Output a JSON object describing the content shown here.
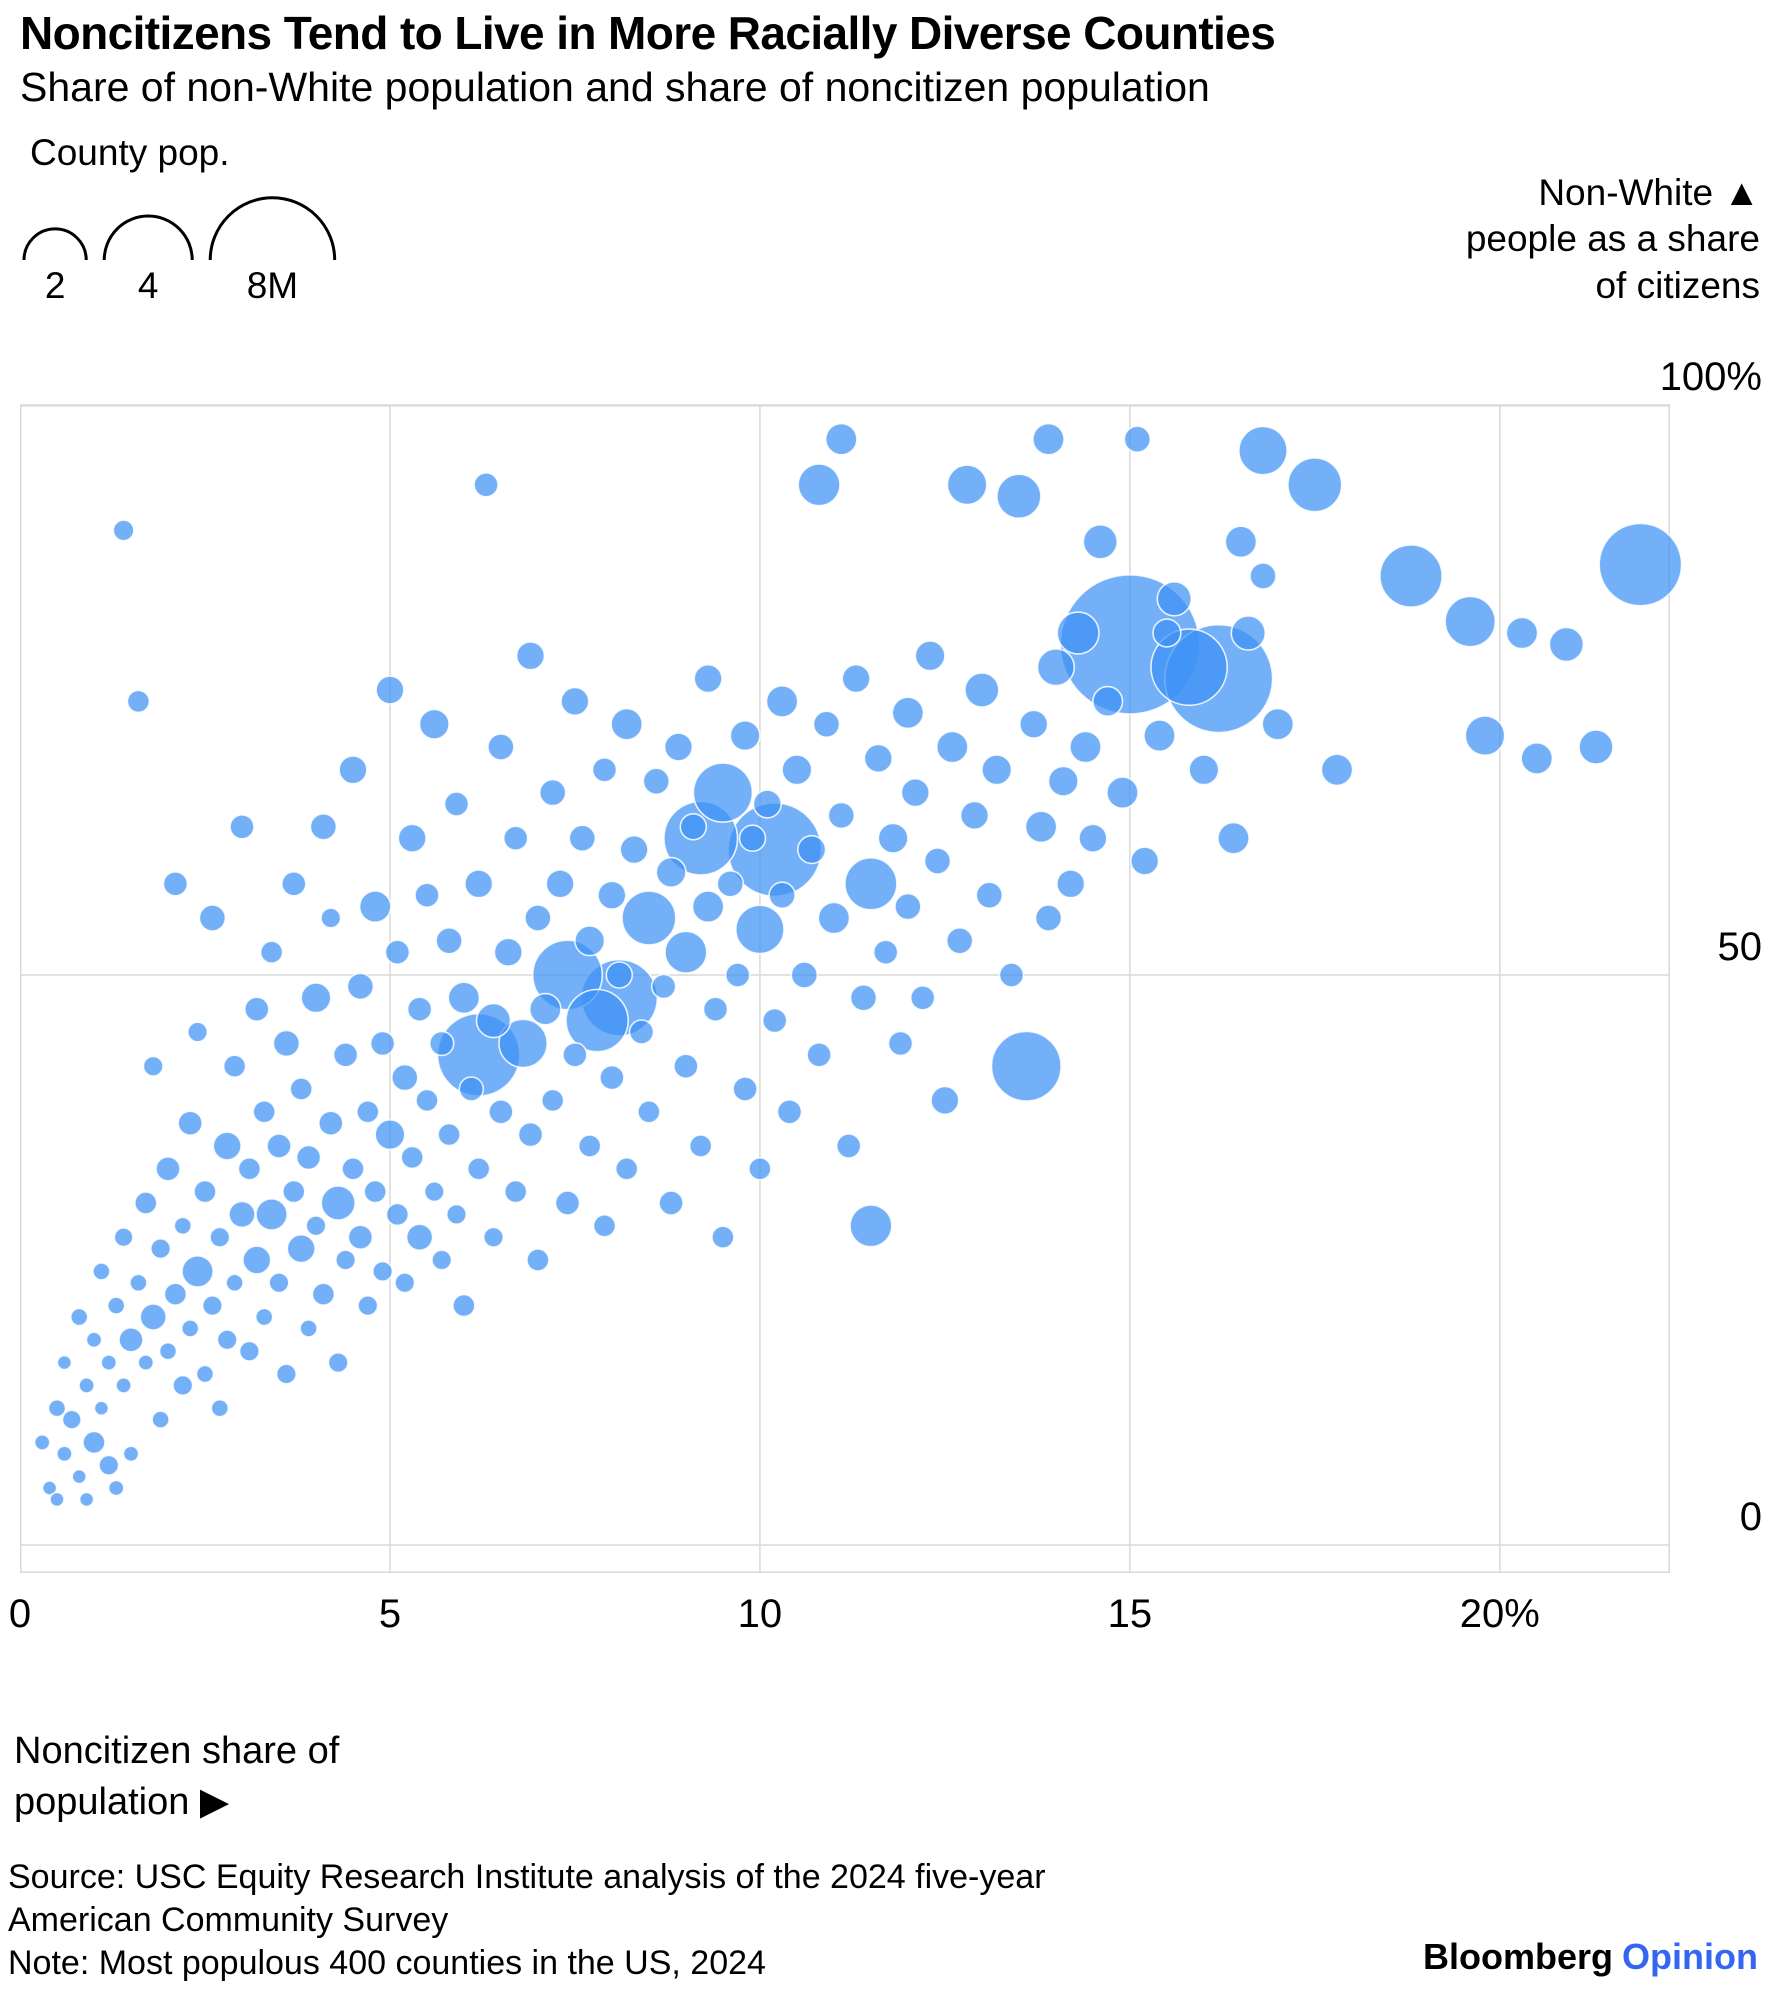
{
  "header": {
    "title": "Noncitizens Tend to Live in More Racially Diverse Counties",
    "subtitle": "Share of non-White population and share of noncitizen population"
  },
  "size_legend": {
    "label": "County pop.",
    "items": [
      {
        "label": "2",
        "population_millions": 2
      },
      {
        "label": "4",
        "population_millions": 4
      },
      {
        "label": "8M",
        "population_millions": 8
      }
    ]
  },
  "y_axis": {
    "label_lines": [
      "Non-White ▲",
      "people as a share",
      "of citizens"
    ],
    "ticks": [
      {
        "label": "100%",
        "value": 100
      },
      {
        "label": "50",
        "value": 50
      },
      {
        "label": "0",
        "value": 0
      }
    ]
  },
  "x_axis": {
    "ticks": [
      {
        "label": "0",
        "value": 0
      },
      {
        "label": "5",
        "value": 5
      },
      {
        "label": "10",
        "value": 10
      },
      {
        "label": "15",
        "value": 15
      },
      {
        "label": "20%",
        "value": 20
      }
    ],
    "label_lines": [
      "Noncitizen share of",
      "population ▶"
    ]
  },
  "footer": {
    "source_lines": [
      "Source: USC Equity Research Institute analysis of the 2024 five-year",
      "American Community Survey"
    ],
    "note": "Note: Most populous 400 counties in the US, 2024",
    "brand": {
      "name": "Bloomberg",
      "edition": "Opinion"
    }
  },
  "colors": {
    "bubble_fill": "#3F92F5",
    "bubble_stroke": "#FFFFFF",
    "grid": "#D8D8D8",
    "brand_blue": "#3566F0",
    "text": "#000000"
  },
  "chart_data": {
    "type": "scatter",
    "title": "Noncitizens Tend to Live in More Racially Diverse Counties",
    "subtitle": "Share of non-White population and share of noncitizen population",
    "xlabel": "Noncitizen share of population (%)",
    "ylabel": "Non-White people as a share of citizens (%)",
    "x_range": [
      0,
      22.3
    ],
    "y_range": [
      0,
      100
    ],
    "grid": true,
    "bubble_size_unit": "county population, millions",
    "size_legend_values_millions": [
      2,
      4,
      8
    ],
    "points_format": [
      "noncitizen_share_pct",
      "nonwhite_share_pct",
      "county_population_millions"
    ],
    "points": [
      [
        0.3,
        9,
        0.12
      ],
      [
        0.4,
        5,
        0.1
      ],
      [
        0.5,
        12,
        0.15
      ],
      [
        0.5,
        4,
        0.1
      ],
      [
        0.6,
        8,
        0.12
      ],
      [
        0.6,
        16,
        0.1
      ],
      [
        0.7,
        11,
        0.18
      ],
      [
        0.8,
        6,
        0.1
      ],
      [
        0.8,
        20,
        0.15
      ],
      [
        0.9,
        14,
        0.12
      ],
      [
        0.9,
        4,
        0.1
      ],
      [
        1.0,
        9,
        0.25
      ],
      [
        1.0,
        18,
        0.12
      ],
      [
        1.1,
        24,
        0.15
      ],
      [
        1.1,
        12,
        0.1
      ],
      [
        1.2,
        7,
        0.2
      ],
      [
        1.2,
        16,
        0.12
      ],
      [
        1.3,
        21,
        0.15
      ],
      [
        1.3,
        5,
        0.12
      ],
      [
        1.4,
        27,
        0.18
      ],
      [
        1.4,
        14,
        0.12
      ],
      [
        1.4,
        89,
        0.22
      ],
      [
        1.5,
        18,
        0.3
      ],
      [
        1.5,
        8,
        0.12
      ],
      [
        1.6,
        23,
        0.15
      ],
      [
        1.6,
        74,
        0.25
      ],
      [
        1.7,
        30,
        0.25
      ],
      [
        1.7,
        16,
        0.12
      ],
      [
        1.8,
        20,
        0.35
      ],
      [
        1.8,
        42,
        0.2
      ],
      [
        1.9,
        11,
        0.15
      ],
      [
        1.9,
        26,
        0.2
      ],
      [
        2.0,
        33,
        0.3
      ],
      [
        2.0,
        17,
        0.15
      ],
      [
        2.1,
        22,
        0.25
      ],
      [
        2.1,
        58,
        0.3
      ],
      [
        2.2,
        14,
        0.2
      ],
      [
        2.2,
        28,
        0.15
      ],
      [
        2.3,
        37,
        0.3
      ],
      [
        2.3,
        19,
        0.15
      ],
      [
        2.4,
        24,
        0.5
      ],
      [
        2.4,
        45,
        0.2
      ],
      [
        2.5,
        15,
        0.15
      ],
      [
        2.5,
        31,
        0.25
      ],
      [
        2.6,
        21,
        0.2
      ],
      [
        2.6,
        55,
        0.35
      ],
      [
        2.7,
        27,
        0.2
      ],
      [
        2.7,
        12,
        0.15
      ],
      [
        2.8,
        35,
        0.4
      ],
      [
        2.8,
        18,
        0.2
      ],
      [
        2.9,
        42,
        0.25
      ],
      [
        2.9,
        23,
        0.15
      ],
      [
        3.0,
        29,
        0.35
      ],
      [
        3.0,
        63,
        0.3
      ],
      [
        3.1,
        17,
        0.2
      ],
      [
        3.1,
        33,
        0.25
      ],
      [
        3.2,
        25,
        0.4
      ],
      [
        3.2,
        47,
        0.3
      ],
      [
        3.3,
        38,
        0.25
      ],
      [
        3.3,
        20,
        0.15
      ],
      [
        3.4,
        29,
        0.5
      ],
      [
        3.4,
        52,
        0.25
      ],
      [
        3.5,
        23,
        0.2
      ],
      [
        3.5,
        35,
        0.3
      ],
      [
        3.6,
        44,
        0.35
      ],
      [
        3.6,
        15,
        0.2
      ],
      [
        3.7,
        31,
        0.25
      ],
      [
        3.7,
        58,
        0.3
      ],
      [
        3.8,
        26,
        0.4
      ],
      [
        3.8,
        40,
        0.25
      ],
      [
        3.9,
        19,
        0.15
      ],
      [
        3.9,
        34,
        0.3
      ],
      [
        4.0,
        48,
        0.45
      ],
      [
        4.0,
        28,
        0.2
      ],
      [
        4.1,
        63,
        0.35
      ],
      [
        4.1,
        22,
        0.25
      ],
      [
        4.2,
        37,
        0.3
      ],
      [
        4.2,
        55,
        0.2
      ],
      [
        4.3,
        30,
        0.6
      ],
      [
        4.3,
        16,
        0.2
      ],
      [
        4.4,
        43,
        0.3
      ],
      [
        4.4,
        25,
        0.2
      ],
      [
        4.5,
        68,
        0.4
      ],
      [
        4.5,
        33,
        0.25
      ],
      [
        4.6,
        27,
        0.3
      ],
      [
        4.6,
        49,
        0.35
      ],
      [
        4.7,
        38,
        0.25
      ],
      [
        4.7,
        21,
        0.2
      ],
      [
        4.8,
        56,
        0.5
      ],
      [
        4.8,
        31,
        0.25
      ],
      [
        4.9,
        44,
        0.3
      ],
      [
        4.9,
        24,
        0.2
      ],
      [
        5.0,
        36,
        0.45
      ],
      [
        5.0,
        75,
        0.4
      ],
      [
        5.1,
        29,
        0.25
      ],
      [
        5.1,
        52,
        0.3
      ],
      [
        5.2,
        41,
        0.35
      ],
      [
        5.2,
        23,
        0.2
      ],
      [
        5.3,
        62,
        0.4
      ],
      [
        5.3,
        34,
        0.25
      ],
      [
        5.4,
        47,
        0.3
      ],
      [
        5.4,
        27,
        0.35
      ],
      [
        5.5,
        39,
        0.25
      ],
      [
        5.5,
        57,
        0.3
      ],
      [
        5.6,
        31,
        0.2
      ],
      [
        5.6,
        72,
        0.45
      ],
      [
        5.7,
        44,
        0.3
      ],
      [
        5.7,
        25,
        0.2
      ],
      [
        5.8,
        53,
        0.35
      ],
      [
        5.8,
        36,
        0.25
      ],
      [
        5.9,
        65,
        0.3
      ],
      [
        5.9,
        29,
        0.2
      ],
      [
        6.0,
        48,
        0.5
      ],
      [
        6.0,
        21,
        0.25
      ],
      [
        6.1,
        40,
        0.3
      ],
      [
        6.2,
        58,
        0.4
      ],
      [
        6.2,
        43,
        3.5
      ],
      [
        6.2,
        33,
        0.25
      ],
      [
        6.3,
        93,
        0.3
      ],
      [
        6.4,
        46,
        0.6
      ],
      [
        6.4,
        27,
        0.2
      ],
      [
        6.5,
        70,
        0.35
      ],
      [
        6.5,
        38,
        0.3
      ],
      [
        6.6,
        52,
        0.4
      ],
      [
        6.7,
        31,
        0.25
      ],
      [
        6.7,
        62,
        0.3
      ],
      [
        6.8,
        44,
        1.2
      ],
      [
        6.9,
        36,
        0.3
      ],
      [
        6.9,
        78,
        0.4
      ],
      [
        7.0,
        55,
        0.35
      ],
      [
        7.0,
        25,
        0.25
      ],
      [
        7.1,
        47,
        0.5
      ],
      [
        7.2,
        66,
        0.35
      ],
      [
        7.2,
        39,
        0.25
      ],
      [
        7.3,
        58,
        0.4
      ],
      [
        7.4,
        30,
        0.3
      ],
      [
        7.4,
        50,
        2.5
      ],
      [
        7.5,
        43,
        0.3
      ],
      [
        7.5,
        74,
        0.4
      ],
      [
        7.6,
        62,
        0.35
      ],
      [
        7.7,
        35,
        0.25
      ],
      [
        7.7,
        53,
        0.45
      ],
      [
        7.8,
        46,
        2.0
      ],
      [
        7.9,
        68,
        0.3
      ],
      [
        7.9,
        28,
        0.25
      ],
      [
        8.0,
        57,
        0.4
      ],
      [
        8.0,
        41,
        0.3
      ],
      [
        8.1,
        48,
        3.0
      ],
      [
        8.1,
        50,
        0.35
      ],
      [
        8.2,
        72,
        0.5
      ],
      [
        8.2,
        33,
        0.25
      ],
      [
        8.3,
        61,
        0.4
      ],
      [
        8.4,
        45,
        0.3
      ],
      [
        8.5,
        55,
        1.5
      ],
      [
        8.5,
        38,
        0.25
      ],
      [
        8.6,
        67,
        0.35
      ],
      [
        8.7,
        49,
        0.3
      ],
      [
        8.8,
        59,
        0.45
      ],
      [
        8.8,
        30,
        0.3
      ],
      [
        8.9,
        70,
        0.4
      ],
      [
        9.0,
        52,
        0.9
      ],
      [
        9.0,
        42,
        0.3
      ],
      [
        9.1,
        63,
        0.35
      ],
      [
        9.2,
        62,
        2.8
      ],
      [
        9.2,
        35,
        0.25
      ],
      [
        9.3,
        56,
        0.5
      ],
      [
        9.3,
        76,
        0.4
      ],
      [
        9.4,
        47,
        0.3
      ],
      [
        9.5,
        66,
        1.8
      ],
      [
        9.5,
        27,
        0.25
      ],
      [
        9.6,
        58,
        0.35
      ],
      [
        9.7,
        50,
        0.3
      ],
      [
        9.8,
        71,
        0.45
      ],
      [
        9.8,
        40,
        0.3
      ],
      [
        9.9,
        62,
        0.35
      ],
      [
        10.0,
        54,
        1.2
      ],
      [
        10.0,
        33,
        0.25
      ],
      [
        10.2,
        61,
        4.5
      ],
      [
        10.1,
        65,
        0.4
      ],
      [
        10.2,
        46,
        0.3
      ],
      [
        10.3,
        74,
        0.5
      ],
      [
        10.3,
        57,
        0.35
      ],
      [
        10.4,
        38,
        0.3
      ],
      [
        10.5,
        68,
        0.45
      ],
      [
        10.6,
        50,
        0.35
      ],
      [
        10.7,
        61,
        0.4
      ],
      [
        10.8,
        93,
        0.9
      ],
      [
        10.8,
        43,
        0.3
      ],
      [
        10.9,
        72,
        0.35
      ],
      [
        11.0,
        55,
        0.5
      ],
      [
        11.1,
        97,
        0.5
      ],
      [
        11.1,
        64,
        0.35
      ],
      [
        11.2,
        35,
        0.3
      ],
      [
        11.3,
        76,
        0.4
      ],
      [
        11.4,
        48,
        0.35
      ],
      [
        11.5,
        58,
        1.4
      ],
      [
        11.5,
        28,
        0.9
      ],
      [
        11.6,
        69,
        0.4
      ],
      [
        11.7,
        52,
        0.3
      ],
      [
        11.8,
        62,
        0.45
      ],
      [
        11.9,
        44,
        0.3
      ],
      [
        12.0,
        73,
        0.5
      ],
      [
        12.0,
        56,
        0.35
      ],
      [
        12.1,
        66,
        0.4
      ],
      [
        12.2,
        48,
        0.3
      ],
      [
        12.3,
        78,
        0.45
      ],
      [
        12.4,
        60,
        0.35
      ],
      [
        12.5,
        39,
        0.4
      ],
      [
        12.6,
        70,
        0.5
      ],
      [
        12.7,
        53,
        0.35
      ],
      [
        12.8,
        93,
        0.8
      ],
      [
        12.9,
        64,
        0.4
      ],
      [
        13.0,
        75,
        0.6
      ],
      [
        13.1,
        57,
        0.35
      ],
      [
        13.2,
        68,
        0.45
      ],
      [
        13.4,
        50,
        0.3
      ],
      [
        13.5,
        92,
        1.0
      ],
      [
        13.6,
        42,
        2.5
      ],
      [
        13.7,
        72,
        0.4
      ],
      [
        13.8,
        63,
        0.5
      ],
      [
        13.9,
        97,
        0.5
      ],
      [
        13.9,
        55,
        0.35
      ],
      [
        14.0,
        77,
        0.7
      ],
      [
        14.1,
        67,
        0.45
      ],
      [
        14.2,
        58,
        0.4
      ],
      [
        14.3,
        80,
        0.9
      ],
      [
        14.4,
        70,
        0.5
      ],
      [
        14.5,
        62,
        0.4
      ],
      [
        14.6,
        88,
        0.6
      ],
      [
        14.7,
        74,
        0.45
      ],
      [
        14.9,
        66,
        0.5
      ],
      [
        15.0,
        79,
        10
      ],
      [
        15.1,
        97,
        0.35
      ],
      [
        15.2,
        60,
        0.4
      ],
      [
        15.4,
        71,
        0.5
      ],
      [
        15.5,
        80,
        0.4
      ],
      [
        15.6,
        83,
        0.6
      ],
      [
        15.8,
        77,
        3.0
      ],
      [
        16.0,
        68,
        0.45
      ],
      [
        16.2,
        76,
        6.0
      ],
      [
        16.4,
        62,
        0.5
      ],
      [
        16.5,
        88,
        0.5
      ],
      [
        16.6,
        80,
        0.6
      ],
      [
        16.8,
        96,
        1.2
      ],
      [
        16.8,
        85,
        0.35
      ],
      [
        17.0,
        72,
        0.5
      ],
      [
        17.5,
        93,
        1.5
      ],
      [
        17.8,
        68,
        0.5
      ],
      [
        18.8,
        85,
        2.0
      ],
      [
        19.6,
        81,
        1.3
      ],
      [
        19.8,
        71,
        0.8
      ],
      [
        20.3,
        80,
        0.5
      ],
      [
        20.9,
        79,
        0.6
      ],
      [
        20.5,
        69,
        0.5
      ],
      [
        21.3,
        70,
        0.6
      ],
      [
        21.9,
        86,
        3.5
      ]
    ]
  }
}
